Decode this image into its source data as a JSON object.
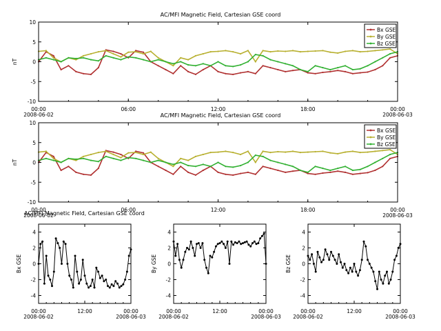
{
  "colors": {
    "Bx": "#b03030",
    "By": "#b8b030",
    "Bz": "#30b030",
    "black": "#000000"
  },
  "chart_data": [
    {
      "type": "line",
      "title": "AC/MFI  Magnetic Field, Cartesian GSE coord",
      "ylabel": "nT",
      "ylim": [
        -10,
        10
      ],
      "yticks": [
        -10,
        -5,
        0,
        5,
        10
      ],
      "xlim": [
        0,
        24
      ],
      "xticks": [
        {
          "x": 0,
          "label": "00:00",
          "sub": "2008-06-02"
        },
        {
          "x": 6,
          "label": "06:00",
          "sub": ""
        },
        {
          "x": 12,
          "label": "12:00",
          "sub": ""
        },
        {
          "x": 18,
          "label": "18:00",
          "sub": ""
        },
        {
          "x": 24,
          "label": "00:00",
          "sub": "2008-06-03"
        }
      ],
      "legend": "top-right",
      "x": [
        0,
        0.5,
        1,
        1.5,
        2,
        2.5,
        3,
        3.5,
        4,
        4.5,
        5,
        5.5,
        6,
        6.5,
        7,
        7.5,
        8,
        8.5,
        9,
        9.5,
        10,
        10.5,
        11,
        11.5,
        12,
        12.5,
        13,
        13.5,
        14,
        14.5,
        15,
        15.5,
        16,
        16.5,
        17,
        17.5,
        18,
        18.5,
        19,
        19.5,
        20,
        20.5,
        21,
        21.5,
        22,
        22.5,
        23,
        23.5,
        24
      ],
      "series": [
        {
          "name": "Bx GSE",
          "color": "Bx",
          "values": [
            0,
            2.5,
            1.5,
            -2,
            -1,
            -2.5,
            -3,
            -3.2,
            -1.5,
            3,
            2.6,
            2,
            1,
            2.8,
            2.4,
            0,
            -1,
            -2,
            -3,
            -1,
            -2.5,
            -3.2,
            -2,
            -1,
            -2.5,
            -3,
            -3.2,
            -2.8,
            -2.5,
            -3,
            -1,
            -1.5,
            -2,
            -2.5,
            -2.2,
            -2,
            -2.8,
            -3,
            -2.7,
            -2.5,
            -2.2,
            -2.5,
            -3,
            -2.8,
            -2.6,
            -2,
            -1,
            1,
            1.5
          ]
        },
        {
          "name": "By GSE",
          "color": "By",
          "values": [
            2.6,
            2.8,
            1,
            0,
            1,
            0.5,
            1.5,
            2,
            2.5,
            2.8,
            2,
            1.2,
            2.4,
            2.5,
            2,
            2.6,
            1,
            0,
            -1,
            1,
            0.5,
            1.5,
            2,
            2.5,
            2.6,
            2.8,
            2.5,
            2,
            2.8,
            0,
            2.8,
            2.5,
            2.7,
            2.6,
            2.8,
            2.5,
            2.6,
            2.7,
            2.8,
            2.4,
            2.2,
            2.6,
            2.8,
            2.5,
            2.6,
            2.8,
            3,
            3.2,
            2
          ]
        },
        {
          "name": "Bz GSE",
          "color": "Bz",
          "values": [
            0.5,
            1,
            0.5,
            0,
            1,
            0.8,
            1,
            0.5,
            0.2,
            1.5,
            1,
            0.5,
            1.2,
            1,
            0.5,
            0,
            0.5,
            0,
            -0.5,
            0,
            -0.8,
            -1,
            -0.5,
            -1,
            0,
            -1,
            -1.2,
            -0.8,
            0,
            1.8,
            1.5,
            0.5,
            0,
            -0.5,
            -1,
            -2,
            -2.5,
            -1,
            -1.5,
            -2,
            -1.5,
            -1,
            -2,
            -1.8,
            -1,
            0,
            1,
            2,
            2.5
          ]
        }
      ]
    },
    {
      "type": "line",
      "title": "AC/MFI  Magnetic Field, Cartesian GSE coord",
      "ylabel": "nT",
      "ylim": [
        -10,
        10
      ],
      "yticks": [
        -10,
        -5,
        0,
        5,
        10
      ],
      "xlim": [
        0,
        24
      ],
      "xticks": [
        {
          "x": 0,
          "label": "00:00",
          "sub": "2008-06-02"
        },
        {
          "x": 6,
          "label": "06:00",
          "sub": ""
        },
        {
          "x": 12,
          "label": "12:00",
          "sub": ""
        },
        {
          "x": 18,
          "label": "18:00",
          "sub": ""
        },
        {
          "x": 24,
          "label": "00:00",
          "sub": "2008-06-03"
        }
      ],
      "legend": "top-right",
      "x": [
        0,
        0.5,
        1,
        1.5,
        2,
        2.5,
        3,
        3.5,
        4,
        4.5,
        5,
        5.5,
        6,
        6.5,
        7,
        7.5,
        8,
        8.5,
        9,
        9.5,
        10,
        10.5,
        11,
        11.5,
        12,
        12.5,
        13,
        13.5,
        14,
        14.5,
        15,
        15.5,
        16,
        16.5,
        17,
        17.5,
        18,
        18.5,
        19,
        19.5,
        20,
        20.5,
        21,
        21.5,
        22,
        22.5,
        23,
        23.5,
        24
      ],
      "series": [
        {
          "name": "Bx GSE",
          "color": "Bx",
          "values": [
            0,
            2.5,
            1.5,
            -2,
            -1,
            -2.5,
            -3,
            -3.2,
            -1.5,
            3,
            2.6,
            2,
            1,
            2.8,
            2.4,
            0,
            -1,
            -2,
            -3,
            -1,
            -2.5,
            -3.2,
            -2,
            -1,
            -2.5,
            -3,
            -3.2,
            -2.8,
            -2.5,
            -3,
            -1,
            -1.5,
            -2,
            -2.5,
            -2.2,
            -2,
            -2.8,
            -3,
            -2.7,
            -2.5,
            -2.2,
            -2.5,
            -3,
            -2.8,
            -2.6,
            -2,
            -1,
            1,
            1.5
          ]
        },
        {
          "name": "By GSE",
          "color": "By",
          "values": [
            2.6,
            2.8,
            1,
            0,
            1,
            0.5,
            1.5,
            2,
            2.5,
            2.8,
            2,
            1.2,
            2.4,
            2.5,
            2,
            2.6,
            1,
            0,
            -1,
            1,
            0.5,
            1.5,
            2,
            2.5,
            2.6,
            2.8,
            2.5,
            2,
            2.8,
            0,
            2.8,
            2.5,
            2.7,
            2.6,
            2.8,
            2.5,
            2.6,
            2.7,
            2.8,
            2.4,
            2.2,
            2.6,
            2.8,
            2.5,
            2.6,
            2.8,
            3,
            3.2,
            2
          ]
        },
        {
          "name": "Bz GSE",
          "color": "Bz",
          "values": [
            0.5,
            1,
            0.5,
            0,
            1,
            0.8,
            1,
            0.5,
            0.2,
            1.5,
            1,
            0.5,
            1.2,
            1,
            0.5,
            0,
            0.5,
            0,
            -0.5,
            0,
            -0.8,
            -1,
            -0.5,
            -1,
            0,
            -1,
            -1.2,
            -0.8,
            0,
            1.8,
            1.5,
            0.5,
            0,
            -0.5,
            -1,
            -2,
            -2.5,
            -1,
            -1.5,
            -2,
            -1.5,
            -1,
            -2,
            -1.8,
            -1,
            0,
            1,
            2,
            2.5
          ]
        }
      ]
    },
    {
      "type": "line",
      "title": "AC/MFI  Magnetic Field, Cartesian GSE coord",
      "ylabel": "Bx  GSE",
      "ylim": [
        -5,
        5
      ],
      "yticks": [
        -4,
        -2,
        0,
        2,
        4
      ],
      "xlim": [
        0,
        24
      ],
      "xticks": [
        {
          "x": 0,
          "label": "00:00",
          "sub": "2008-06-02"
        },
        {
          "x": 12,
          "label": "12:00",
          "sub": ""
        },
        {
          "x": 24,
          "label": "00:00",
          "sub": "2008-06-03"
        }
      ],
      "x": [
        0,
        0.5,
        1,
        1.5,
        2,
        2.5,
        3,
        3.5,
        4,
        4.5,
        5,
        5.5,
        6,
        6.5,
        7,
        7.5,
        8,
        8.5,
        9,
        9.5,
        10,
        10.5,
        11,
        11.5,
        12,
        12.5,
        13,
        13.5,
        14,
        14.5,
        15,
        15.5,
        16,
        16.5,
        17,
        17.5,
        18,
        18.5,
        19,
        19.5,
        20,
        20.5,
        21,
        21.5,
        22,
        22.5,
        23,
        23.5,
        24
      ],
      "series": [
        {
          "color": "black",
          "values": [
            0,
            2.5,
            2.8,
            -2.5,
            1,
            -1.5,
            -2,
            -2.8,
            -1,
            3.2,
            2.6,
            2,
            0,
            2.8,
            2.5,
            0,
            -1.5,
            -2,
            -3,
            1,
            -1,
            -2.5,
            -2,
            0.5,
            -1.5,
            -2.5,
            -3,
            -2.8,
            -2,
            -3,
            -0.5,
            -1,
            -1.8,
            -1.5,
            -2.2,
            -2,
            -2.8,
            -3,
            -2.6,
            -2.8,
            -2.2,
            -2.5,
            -3,
            -2.8,
            -2.6,
            -2,
            -1,
            1,
            1.8
          ]
        }
      ]
    },
    {
      "type": "line",
      "title": "",
      "ylabel": "By  GSE",
      "ylim": [
        -5,
        5
      ],
      "yticks": [
        -4,
        -2,
        0,
        2,
        4
      ],
      "xlim": [
        0,
        24
      ],
      "xticks": [
        {
          "x": 0,
          "label": "00:00",
          "sub": "2008-06-02"
        },
        {
          "x": 12,
          "label": "12:00",
          "sub": ""
        },
        {
          "x": 24,
          "label": "00:00",
          "sub": "2008-06-03"
        }
      ],
      "x": [
        0,
        0.5,
        1,
        1.5,
        2,
        2.5,
        3,
        3.5,
        4,
        4.5,
        5,
        5.5,
        6,
        6.5,
        7,
        7.5,
        8,
        8.5,
        9,
        9.5,
        10,
        10.5,
        11,
        11.5,
        12,
        12.5,
        13,
        13.5,
        14,
        14.5,
        15,
        15.5,
        16,
        16.5,
        17,
        17.5,
        18,
        18.5,
        19,
        19.5,
        20,
        20.5,
        21,
        21.5,
        22,
        22.5,
        23,
        23.5,
        24
      ],
      "series": [
        {
          "color": "black",
          "values": [
            2.8,
            1,
            2.5,
            0.5,
            -0.5,
            0.5,
            1.5,
            2,
            1.8,
            2.8,
            2,
            1,
            2.5,
            2.6,
            2,
            2.6,
            0.5,
            -0.5,
            -1.2,
            1,
            0.8,
            1.5,
            2.2,
            2.5,
            2.6,
            2.8,
            2.5,
            2,
            2.8,
            0,
            2.8,
            2.4,
            2.7,
            2.6,
            2.8,
            2.5,
            2.6,
            2.7,
            2.8,
            2.4,
            2.2,
            2.6,
            2.8,
            2.5,
            2.6,
            3.2,
            3.5,
            3.8,
            0
          ]
        }
      ]
    },
    {
      "type": "line",
      "title": "",
      "ylabel": "Bz  GSE",
      "ylim": [
        -5,
        5
      ],
      "yticks": [
        -4,
        -2,
        0,
        2,
        4
      ],
      "xlim": [
        0,
        24
      ],
      "xticks": [
        {
          "x": 0,
          "label": "00:00",
          "sub": "2008-06-02"
        },
        {
          "x": 12,
          "label": "12:00",
          "sub": ""
        },
        {
          "x": 24,
          "label": "00:00",
          "sub": "2008-06-03"
        }
      ],
      "x": [
        0,
        0.5,
        1,
        1.5,
        2,
        2.5,
        3,
        3.5,
        4,
        4.5,
        5,
        5.5,
        6,
        6.5,
        7,
        7.5,
        8,
        8.5,
        9,
        9.5,
        10,
        10.5,
        11,
        11.5,
        12,
        12.5,
        13,
        13.5,
        14,
        14.5,
        15,
        15.5,
        16,
        16.5,
        17,
        17.5,
        18,
        18.5,
        19,
        19.5,
        20,
        20.5,
        21,
        21.5,
        22,
        22.5,
        23,
        23.5,
        24
      ],
      "series": [
        {
          "color": "black",
          "values": [
            1,
            0.5,
            1.2,
            0,
            -1,
            1.5,
            0.8,
            0.2,
            0.5,
            1.8,
            1.2,
            0.5,
            1.5,
            1,
            0.5,
            0,
            1.2,
            0.2,
            -0.5,
            0,
            -0.8,
            -1.2,
            -0.5,
            -1,
            0,
            -1,
            -1.5,
            -0.8,
            0.5,
            2.8,
            2.2,
            0.5,
            0,
            -0.5,
            -1,
            -2.2,
            -3.2,
            -1,
            -2,
            -2.5,
            -1.5,
            -1,
            -2.5,
            -2,
            -1,
            0.5,
            1,
            2,
            2.5
          ]
        }
      ]
    }
  ]
}
